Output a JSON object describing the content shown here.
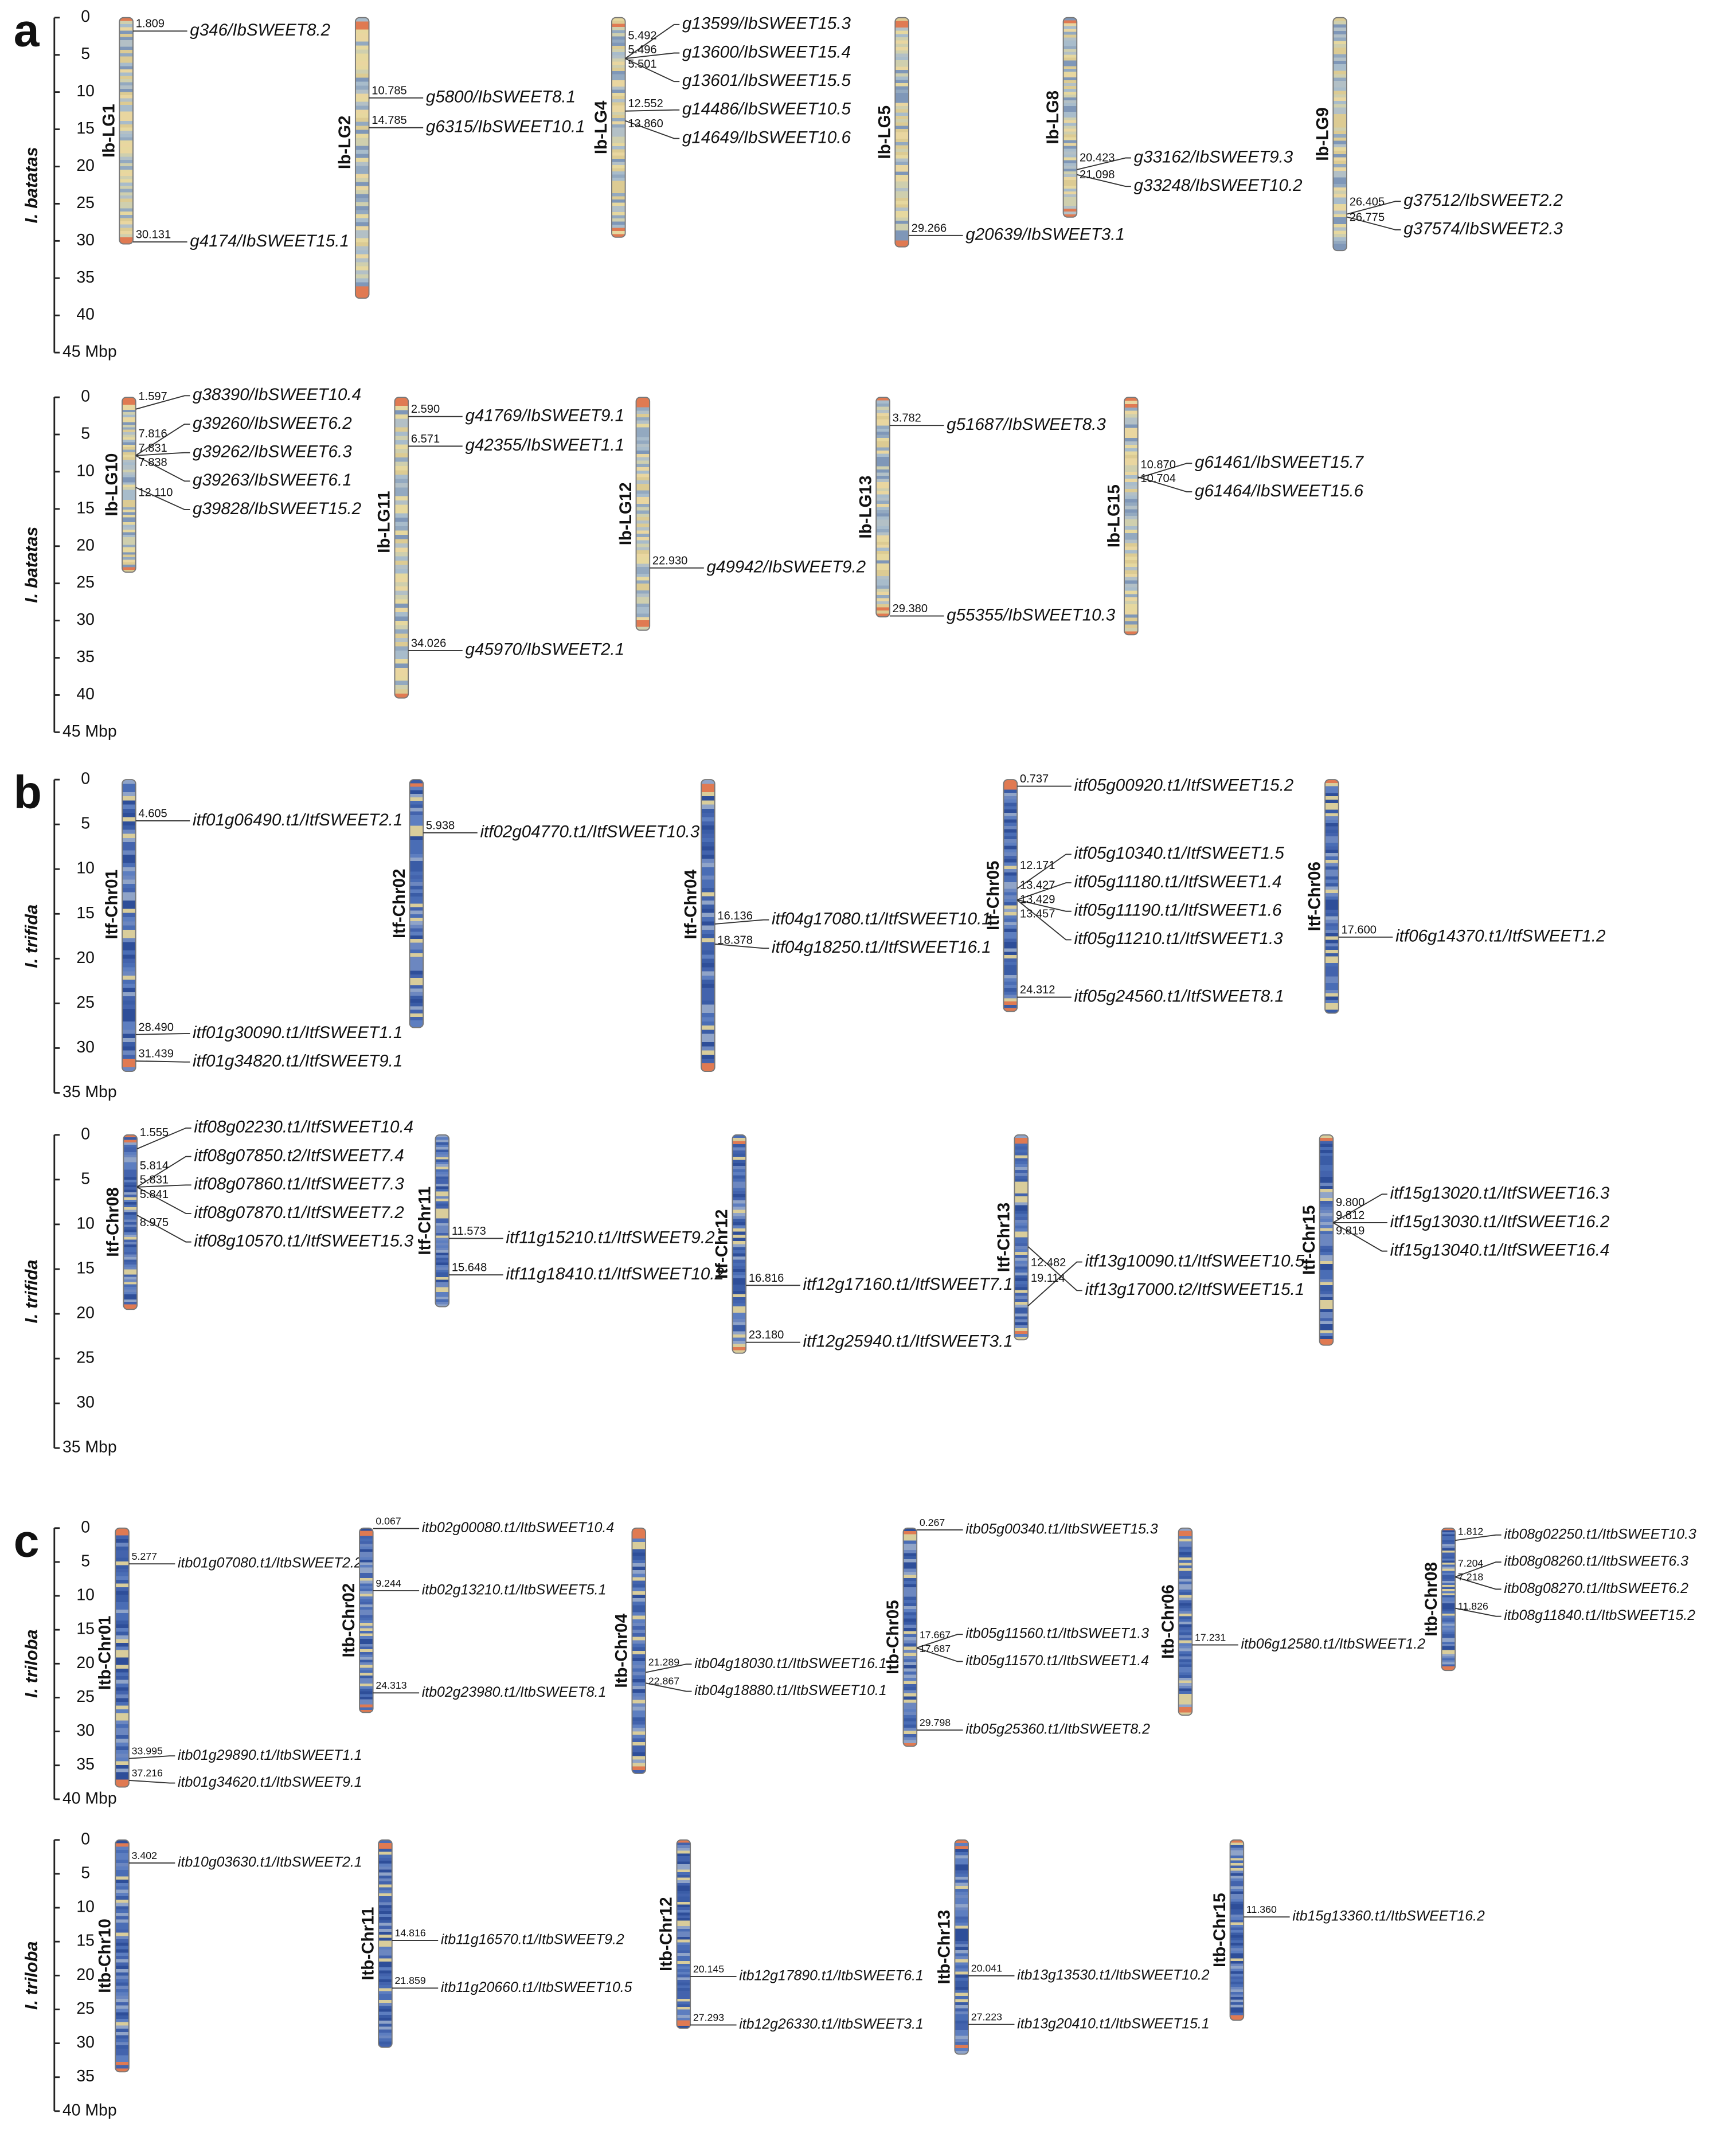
{
  "panels": [
    {
      "letter": "a",
      "rows": [
        {
          "species": "I. batatas",
          "yticks": [
            0,
            5,
            10,
            15,
            20,
            25,
            30,
            35,
            40,
            {
              "value": 45,
              "label": "45 Mbp"
            }
          ],
          "chromosomes": [
            {
              "name": "Ib-LG1",
              "length": 30.4,
              "genes": [
                {
                  "pos": 1.809,
                  "name": "g346/IbSWEET8.2"
                },
                {
                  "pos": 30.131,
                  "name": "g4174/IbSWEET15.1"
                }
              ]
            },
            {
              "name": "Ib-LG2",
              "length": 37.7,
              "genes": [
                {
                  "pos": 10.785,
                  "name": "g5800/IbSWEET8.1"
                },
                {
                  "pos": 14.785,
                  "name": "g6315/IbSWEET10.1"
                }
              ]
            },
            {
              "name": "Ib-LG4",
              "length": 29.5,
              "genes": [
                {
                  "pos": 5.492,
                  "name": "g13599/IbSWEET15.3"
                },
                {
                  "pos": 5.496,
                  "name": "g13600/IbSWEET15.4"
                },
                {
                  "pos": 5.501,
                  "name": "g13601/IbSWEET15.5"
                },
                {
                  "pos": 12.552,
                  "name": "g14486/IbSWEET10.5"
                },
                {
                  "pos": 13.86,
                  "pos_label": "13.860",
                  "name": "g14649/IbSWEET10.6"
                }
              ]
            },
            {
              "name": "Ib-LG5",
              "length": 30.8,
              "genes": [
                {
                  "pos": 29.266,
                  "name": "g20639/IbSWEET3.1"
                }
              ]
            },
            {
              "name": "Ib-LG8",
              "length": 26.8,
              "genes": [
                {
                  "pos": 20.423,
                  "name": "g33162/IbSWEET9.3"
                },
                {
                  "pos": 21.098,
                  "name": "g33248/IbSWEET10.2"
                }
              ]
            },
            {
              "name": "Ib-LG9",
              "length": 31.3,
              "genes": [
                {
                  "pos": 26.405,
                  "name": "g37512/IbSWEET2.2"
                },
                {
                  "pos": 26.775,
                  "name": "g37574/IbSWEET2.3"
                }
              ]
            }
          ]
        },
        {
          "species": "I. batatas",
          "yticks": [
            0,
            5,
            10,
            15,
            20,
            25,
            30,
            35,
            40,
            {
              "value": 45,
              "label": "45 Mbp"
            }
          ],
          "chromosomes": [
            {
              "name": "Ib-LG10",
              "length": 23.5,
              "genes": [
                {
                  "pos": 1.597,
                  "name": "g38390/IbSWEET10.4"
                },
                {
                  "pos": 7.816,
                  "name": "g39260/IbSWEET6.2"
                },
                {
                  "pos": 7.831,
                  "name": "g39262/IbSWEET6.3"
                },
                {
                  "pos": 7.838,
                  "name": "g39263/IbSWEET6.1"
                },
                {
                  "pos": 12.11,
                  "pos_label": "12.110",
                  "name": "g39828/IbSWEET15.2"
                }
              ]
            },
            {
              "name": "Ib-LG11",
              "length": 40.4,
              "genes": [
                {
                  "pos": 2.59,
                  "pos_label": "2.590",
                  "name": "g41769/IbSWEET9.1"
                },
                {
                  "pos": 6.571,
                  "name": "g42355/IbSWEET1.1"
                },
                {
                  "pos": 34.026,
                  "name": "g45970/IbSWEET2.1"
                }
              ]
            },
            {
              "name": "Ib-LG12",
              "length": 31.3,
              "genes": [
                {
                  "pos": 22.93,
                  "pos_label": "22.930",
                  "name": "g49942/IbSWEET9.2"
                }
              ]
            },
            {
              "name": "Ib-LG13",
              "length": 29.5,
              "genes": [
                {
                  "pos": 3.782,
                  "name": "g51687/IbSWEET8.3"
                },
                {
                  "pos": 29.38,
                  "pos_label": "29.380",
                  "name": "g55355/IbSWEET10.3"
                }
              ]
            },
            {
              "name": "Ib-LG15",
              "length": 31.9,
              "genes": [
                {
                  "pos": 10.87,
                  "pos_label": "10.870",
                  "name": "g61461/IbSWEET15.7"
                },
                {
                  "pos": 10.704,
                  "name": "g61464/IbSWEET15.6"
                }
              ]
            }
          ]
        }
      ]
    },
    {
      "letter": "b",
      "rows": [
        {
          "species": "I. trifida",
          "yticks": [
            0,
            5,
            10,
            15,
            20,
            25,
            30,
            {
              "value": 35,
              "label": "35 Mbp"
            }
          ],
          "chromosomes": [
            {
              "name": "Itf-Chr01",
              "length": 32.6,
              "genes": [
                {
                  "pos": 4.605,
                  "name": "itf01g06490.t1/ItfSWEET2.1"
                },
                {
                  "pos": 28.49,
                  "pos_label": "28.490",
                  "name": "itf01g30090.t1/ItfSWEET1.1"
                },
                {
                  "pos": 31.439,
                  "name": "itf01g34820.t1/ItfSWEET9.1"
                }
              ]
            },
            {
              "name": "Itf-Chr02",
              "length": 27.7,
              "genes": [
                {
                  "pos": 5.938,
                  "name": "itf02g04770.t1/ItfSWEET10.3"
                }
              ]
            },
            {
              "name": "Itf-Chr04",
              "length": 32.6,
              "genes": [
                {
                  "pos": 16.136,
                  "name": "itf04g17080.t1/ItfSWEET10.1"
                },
                {
                  "pos": 18.378,
                  "name": "itf04g18250.t1/ItfSWEET16.1"
                }
              ]
            },
            {
              "name": "Itf-Chr05",
              "length": 25.9,
              "genes": [
                {
                  "pos": 0.737,
                  "name": "itf05g00920.t1/ItfSWEET15.2"
                },
                {
                  "pos": 12.171,
                  "name": "itf05g10340.t1/ItfSWEET1.5"
                },
                {
                  "pos": 13.427,
                  "name": "itf05g11180.t1/ItfSWEET1.4"
                },
                {
                  "pos": 13.429,
                  "name": "itf05g11190.t1/ItfSWEET1.6"
                },
                {
                  "pos": 13.457,
                  "name": "itf05g11210.t1/ItfSWEET1.3"
                },
                {
                  "pos": 24.312,
                  "name": "itf05g24560.t1/ItfSWEET8.1"
                }
              ]
            },
            {
              "name": "Itf-Chr06",
              "length": 26.1,
              "genes": [
                {
                  "pos": 17.6,
                  "pos_label": "17.600",
                  "name": "itf06g14370.t1/ItfSWEET1.2"
                }
              ]
            }
          ]
        },
        {
          "species": "I. trifida",
          "yticks": [
            0,
            5,
            10,
            15,
            20,
            25,
            30,
            {
              "value": 35,
              "label": "35 Mbp"
            }
          ],
          "chromosomes": [
            {
              "name": "Itf-Chr08",
              "length": 19.5,
              "genes": [
                {
                  "pos": 1.555,
                  "name": "itf08g02230.t1/ItfSWEET10.4"
                },
                {
                  "pos": 5.814,
                  "name": "itf08g07850.t2/ItfSWEET7.4"
                },
                {
                  "pos": 5.831,
                  "name": "itf08g07860.t1/ItfSWEET7.3"
                },
                {
                  "pos": 5.841,
                  "name": "itf08g07870.t1/ItfSWEET7.2"
                },
                {
                  "pos": 8.975,
                  "name": "itf08g10570.t1/ItfSWEET15.3"
                }
              ]
            },
            {
              "name": "Itf-Chr11",
              "length": 19.2,
              "genes": [
                {
                  "pos": 11.573,
                  "name": "itf11g15210.t1/ItfSWEET9.2"
                },
                {
                  "pos": 15.648,
                  "name": "itf11g18410.t1/ItfSWEET10.2"
                }
              ]
            },
            {
              "name": "Itf-Chr12",
              "length": 24.4,
              "genes": [
                {
                  "pos": 16.816,
                  "name": "itf12g17160.t1/ItfSWEET7.1"
                },
                {
                  "pos": 23.18,
                  "pos_label": "23.180",
                  "name": "itf12g25940.t1/ItfSWEET3.1"
                }
              ]
            },
            {
              "name": "Itf-Chr13",
              "length": 22.9,
              "genes": [
                {
                  "pos": 19.114,
                  "name": "itf13g10090.t1/ItfSWEET10.5"
                },
                {
                  "pos": 12.482,
                  "name": "itf13g17000.t2/ItfSWEET15.1"
                }
              ]
            },
            {
              "name": "Itf-Chr15",
              "length": 23.5,
              "genes": [
                {
                  "pos": 9.8,
                  "pos_label": "9.800",
                  "name": "itf15g13020.t1/ItfSWEET16.3"
                },
                {
                  "pos": 9.812,
                  "name": "itf15g13030.t1/ItfSWEET16.2"
                },
                {
                  "pos": 9.819,
                  "name": "itf15g13040.t1/ItfSWEET16.4"
                }
              ]
            }
          ]
        }
      ]
    },
    {
      "letter": "c",
      "rows": [
        {
          "species": "I. triloba",
          "yticks": [
            0,
            5,
            10,
            15,
            20,
            25,
            30,
            35,
            {
              "value": 40,
              "label": "40 Mbp"
            }
          ],
          "chromosomes": [
            {
              "name": "Itb-Chr01",
              "length": 38.2,
              "genes": [
                {
                  "pos": 5.277,
                  "name": "itb01g07080.t1/ItbSWEET2.2"
                },
                {
                  "pos": 33.995,
                  "name": "itb01g29890.t1/ItbSWEET1.1"
                },
                {
                  "pos": 37.216,
                  "name": "itb01g34620.t1/ItbSWEET9.1"
                }
              ]
            },
            {
              "name": "Itb-Chr02",
              "length": 27.2,
              "genes": [
                {
                  "pos": 0.067,
                  "name": "itb02g00080.t1/ItbSWEET10.4"
                },
                {
                  "pos": 9.244,
                  "name": "itb02g13210.t1/ItbSWEET5.1"
                },
                {
                  "pos": 24.313,
                  "name": "itb02g23980.t1/ItbSWEET8.1"
                }
              ]
            },
            {
              "name": "Itb-Chr04",
              "length": 36.2,
              "genes": [
                {
                  "pos": 21.289,
                  "name": "itb04g18030.t1/ItbSWEET16.1"
                },
                {
                  "pos": 22.867,
                  "name": "itb04g18880.t1/ItbSWEET10.1"
                }
              ]
            },
            {
              "name": "Itb-Chr05",
              "length": 32.2,
              "genes": [
                {
                  "pos": 0.267,
                  "name": "itb05g00340.t1/ItbSWEET15.3"
                },
                {
                  "pos": 17.667,
                  "name": "itb05g11560.t1/ItbSWEET1.3"
                },
                {
                  "pos": 17.687,
                  "name": "itb05g11570.t1/ItbSWEET1.4"
                },
                {
                  "pos": 29.798,
                  "name": "itb05g25360.t1/ItbSWEET8.2"
                }
              ]
            },
            {
              "name": "Itb-Chr06",
              "length": 27.6,
              "genes": [
                {
                  "pos": 17.231,
                  "name": "itb06g12580.t1/ItbSWEET1.2"
                }
              ]
            },
            {
              "name": "Itb-Chr08",
              "length": 21,
              "genes": [
                {
                  "pos": 1.812,
                  "name": "itb08g02250.t1/ItbSWEET10.3"
                },
                {
                  "pos": 7.204,
                  "name": "itb08g08260.t1/ItbSWEET6.3"
                },
                {
                  "pos": 7.218,
                  "name": "itb08g08270.t1/ItbSWEET6.2"
                },
                {
                  "pos": 11.826,
                  "name": "itb08g11840.t1/ItbSWEET15.2"
                }
              ]
            }
          ]
        },
        {
          "species": "I. triloba",
          "yticks": [
            0,
            5,
            10,
            15,
            20,
            25,
            30,
            35,
            {
              "value": 40,
              "label": "40 Mbp"
            }
          ],
          "chromosomes": [
            {
              "name": "Itb-Chr10",
              "length": 34.2,
              "genes": [
                {
                  "pos": 3.402,
                  "name": "itb10g03630.t1/ItbSWEET2.1"
                }
              ]
            },
            {
              "name": "Itb-Chr11",
              "length": 30.6,
              "genes": [
                {
                  "pos": 14.816,
                  "name": "itb11g16570.t1/ItbSWEET9.2"
                },
                {
                  "pos": 21.859,
                  "name": "itb11g20660.t1/ItbSWEET10.5"
                }
              ]
            },
            {
              "name": "Itb-Chr12",
              "length": 27.8,
              "genes": [
                {
                  "pos": 20.145,
                  "name": "itb12g17890.t1/ItbSWEET6.1"
                },
                {
                  "pos": 27.293,
                  "name": "itb12g26330.t1/ItbSWEET3.1"
                }
              ]
            },
            {
              "name": "Itb-Chr13",
              "length": 31.6,
              "genes": [
                {
                  "pos": 20.041,
                  "name": "itb13g13530.t1/ItbSWEET10.2"
                },
                {
                  "pos": 27.223,
                  "name": "itb13g20410.t1/ItbSWEET15.1"
                }
              ]
            },
            {
              "name": "Itb-Chr15",
              "length": 26.6,
              "genes": [
                {
                  "pos": 11.36,
                  "pos_label": "11.360",
                  "name": "itb15g13360.t1/ItbSWEET16.2"
                }
              ]
            }
          ]
        }
      ]
    }
  ]
}
